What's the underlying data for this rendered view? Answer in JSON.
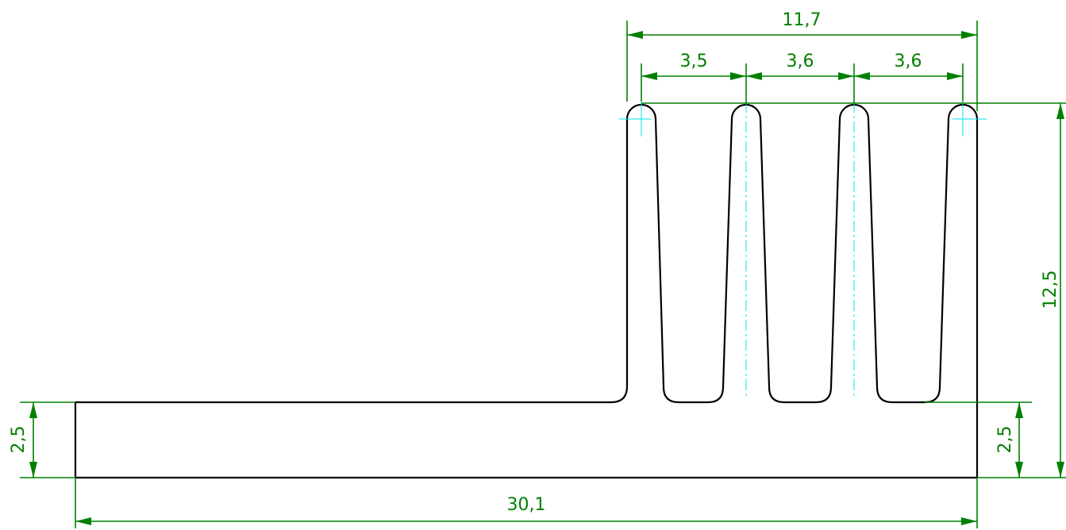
{
  "drawing": {
    "colors": {
      "outline": "#000000",
      "dimension": "#008000",
      "centerline": "#00e5ee",
      "background": "#ffffff"
    },
    "dimensions": {
      "top_overall": "11,7",
      "fin_pitch_1": "3,5",
      "fin_pitch_2": "3,6",
      "fin_pitch_3": "3,6",
      "total_height": "12,5",
      "base_thickness_left": "2,5",
      "base_thickness_right": "2,5",
      "total_width": "30,1"
    }
  }
}
